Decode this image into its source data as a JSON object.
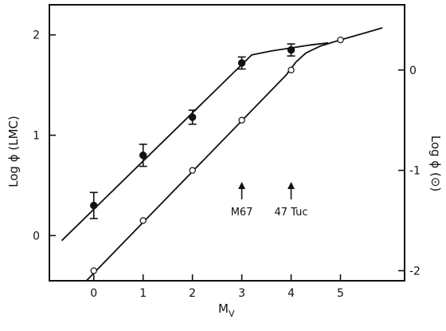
{
  "chart_data": {
    "type": "scatter",
    "xlabel": "M",
    "xlabel_sub": "V",
    "ylabel_left": "Log ϕ (LMC)",
    "ylabel_right": "Log ϕ (⊙)",
    "xlim": [
      -0.9,
      6.3
    ],
    "ylim_left": [
      -0.45,
      2.3
    ],
    "ylim_right": [
      -2.1,
      0.65
    ],
    "x_ticks": [
      0,
      1,
      2,
      3,
      4,
      5
    ],
    "y_ticks_left": [
      0,
      1,
      2
    ],
    "y_ticks_right": [
      -2,
      -1,
      0
    ],
    "grid": false,
    "series": [
      {
        "marker": "filled-circle",
        "axis": "left",
        "x": [
          0,
          1,
          2,
          3,
          4
        ],
        "y": [
          0.3,
          0.8,
          1.18,
          1.72,
          1.85
        ],
        "err": [
          0.13,
          0.11,
          0.07,
          0.06,
          0.06
        ]
      },
      {
        "marker": "open-circle",
        "axis": "right",
        "x": [
          0,
          1,
          2,
          3,
          4,
          5
        ],
        "y": [
          -2.0,
          -1.5,
          -1.0,
          -0.5,
          0.0,
          0.3
        ]
      }
    ],
    "curve_left": {
      "x": [
        -0.65,
        3.2,
        3.6,
        4.0,
        4.4,
        4.75
      ],
      "y": [
        -0.05,
        1.8,
        1.84,
        1.87,
        1.9,
        1.92
      ]
    },
    "curve_right": {
      "x": [
        -0.15,
        3.9,
        4.1,
        4.3,
        4.6,
        5.0,
        5.5,
        5.85
      ],
      "y": [
        -2.1,
        -0.05,
        0.08,
        0.17,
        0.24,
        0.3,
        0.37,
        0.42
      ]
    },
    "annotations": [
      {
        "label": "M67",
        "x": 3.0
      },
      {
        "label": "47 Tuc",
        "x": 4.0
      }
    ]
  }
}
